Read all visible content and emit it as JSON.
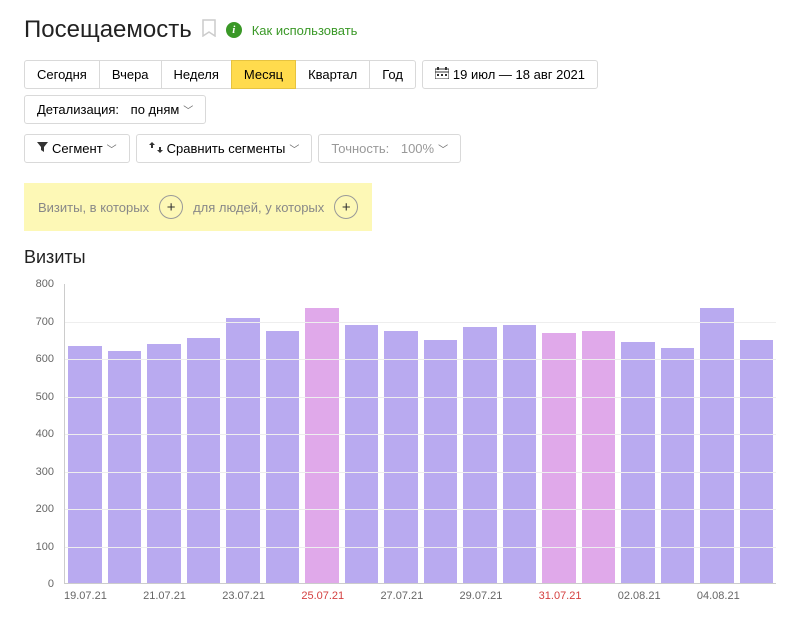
{
  "header": {
    "title": "Посещаемость",
    "help_link": "Как использовать"
  },
  "period_tabs": {
    "items": [
      "Сегодня",
      "Вчера",
      "Неделя",
      "Месяц",
      "Квартал",
      "Год"
    ],
    "active_index": 3
  },
  "date_range": "19 июл — 18 авг 2021",
  "detail": {
    "label": "Детализация:",
    "value": "по дням"
  },
  "filters": {
    "segment": "Сегмент",
    "compare": "Сравнить сегменты",
    "accuracy_label": "Точность:",
    "accuracy_value": "100%"
  },
  "segment_bar": {
    "visits_text": "Визиты, в которых",
    "people_text": "для людей, у которых"
  },
  "chart": {
    "title": "Визиты",
    "type": "bar",
    "y_max": 800,
    "y_tick_step": 100,
    "y_ticks": [
      0,
      100,
      200,
      300,
      400,
      500,
      600,
      700,
      800
    ],
    "bar_default_color": "#b9aaf0",
    "bar_highlight_color": "#e0a9ea",
    "grid_color": "#eeeeee",
    "axis_color": "#cccccc",
    "label_color": "#666666",
    "highlight_label_color": "#d43f3f",
    "bars": [
      {
        "date": "19.07.21",
        "value": 635,
        "highlight": false,
        "show_label": true
      },
      {
        "date": "20.07.21",
        "value": 620,
        "highlight": false,
        "show_label": false
      },
      {
        "date": "21.07.21",
        "value": 640,
        "highlight": false,
        "show_label": true
      },
      {
        "date": "22.07.21",
        "value": 655,
        "highlight": false,
        "show_label": false
      },
      {
        "date": "23.07.21",
        "value": 710,
        "highlight": false,
        "show_label": true
      },
      {
        "date": "24.07.21",
        "value": 675,
        "highlight": false,
        "show_label": false
      },
      {
        "date": "25.07.21",
        "value": 735,
        "highlight": true,
        "show_label": true
      },
      {
        "date": "26.07.21",
        "value": 690,
        "highlight": false,
        "show_label": false
      },
      {
        "date": "27.07.21",
        "value": 675,
        "highlight": false,
        "show_label": true
      },
      {
        "date": "28.07.21",
        "value": 650,
        "highlight": false,
        "show_label": false
      },
      {
        "date": "29.07.21",
        "value": 685,
        "highlight": false,
        "show_label": true
      },
      {
        "date": "30.07.21",
        "value": 690,
        "highlight": false,
        "show_label": false
      },
      {
        "date": "31.07.21",
        "value": 670,
        "highlight": true,
        "show_label": true
      },
      {
        "date": "01.08.21",
        "value": 675,
        "highlight": true,
        "show_label": false
      },
      {
        "date": "02.08.21",
        "value": 645,
        "highlight": false,
        "show_label": true
      },
      {
        "date": "03.08.21",
        "value": 630,
        "highlight": false,
        "show_label": false
      },
      {
        "date": "04.08.21",
        "value": 735,
        "highlight": false,
        "show_label": true
      },
      {
        "date": "05.08.21",
        "value": 650,
        "highlight": false,
        "show_label": false
      }
    ]
  }
}
